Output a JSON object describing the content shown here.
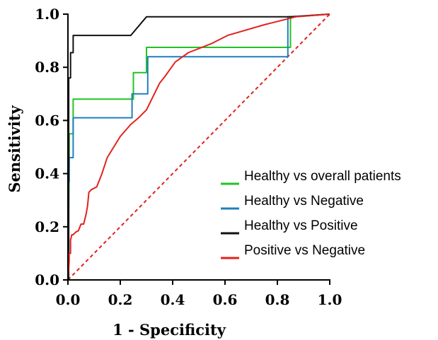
{
  "chart_data": {
    "type": "line",
    "title": "",
    "xlabel": "1 - Specificity",
    "ylabel": "Sensitivity",
    "xlim": [
      0,
      1
    ],
    "ylim": [
      0,
      1
    ],
    "xticks": [
      "0.0",
      "0.2",
      "0.4",
      "0.6",
      "0.8",
      "1.0"
    ],
    "yticks": [
      "0.0",
      "0.2",
      "0.4",
      "0.6",
      "0.8",
      "1.0"
    ],
    "grid": false,
    "legend_position": "bottom-right",
    "reference_line": {
      "x": [
        0,
        1
      ],
      "y": [
        0,
        1
      ],
      "color": "#e3221c",
      "style": "dashed"
    },
    "series": [
      {
        "name": "Healthy vs overall patients",
        "color": "#22c322",
        "x": [
          0,
          0.005,
          0.005,
          0.02,
          0.02,
          0.25,
          0.25,
          0.3,
          0.3,
          0.85,
          0.85,
          1.0
        ],
        "y": [
          0,
          0.46,
          0.55,
          0.55,
          0.68,
          0.68,
          0.78,
          0.78,
          0.875,
          0.875,
          0.99,
          1.0
        ]
      },
      {
        "name": "Healthy vs Negative",
        "color": "#1f7fbf",
        "x": [
          0,
          0.003,
          0.003,
          0.005,
          0.005,
          0.02,
          0.02,
          0.245,
          0.245,
          0.305,
          0.305,
          0.84,
          0.84,
          1.0
        ],
        "y": [
          0,
          0.0,
          0.37,
          0.37,
          0.46,
          0.46,
          0.61,
          0.61,
          0.7,
          0.7,
          0.84,
          0.84,
          0.99,
          1.0
        ]
      },
      {
        "name": "Healthy vs Positive",
        "color": "#111111",
        "x": [
          0,
          0.003,
          0.003,
          0.01,
          0.01,
          0.02,
          0.02,
          0.24,
          0.3,
          0.86,
          1.0
        ],
        "y": [
          0,
          0.0,
          0.76,
          0.76,
          0.855,
          0.855,
          0.92,
          0.92,
          0.99,
          0.99,
          1.0
        ]
      },
      {
        "name": "Positive vs Negative",
        "color": "#e3221c",
        "x": [
          0,
          0.005,
          0.005,
          0.01,
          0.01,
          0.015,
          0.02,
          0.03,
          0.04,
          0.05,
          0.06,
          0.07,
          0.075,
          0.08,
          0.09,
          0.11,
          0.13,
          0.15,
          0.2,
          0.24,
          0.27,
          0.3,
          0.35,
          0.37,
          0.41,
          0.46,
          0.55,
          0.61,
          0.75,
          0.87,
          1.0
        ],
        "y": [
          0,
          0.07,
          0.1,
          0.1,
          0.15,
          0.17,
          0.17,
          0.18,
          0.185,
          0.21,
          0.21,
          0.25,
          0.28,
          0.33,
          0.34,
          0.35,
          0.4,
          0.46,
          0.54,
          0.585,
          0.61,
          0.64,
          0.74,
          0.765,
          0.82,
          0.855,
          0.89,
          0.92,
          0.96,
          0.99,
          1.0
        ]
      }
    ]
  }
}
